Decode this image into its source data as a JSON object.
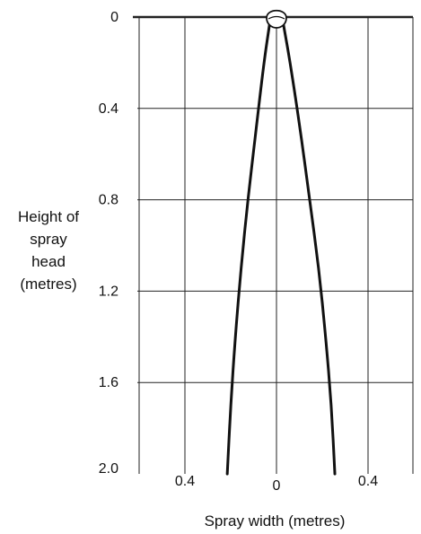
{
  "chart_data": {
    "type": "line",
    "title": "",
    "ylabel": [
      "Height of",
      "spray",
      "head",
      "(metres)"
    ],
    "xlabel": "Spray width (metres)",
    "y_ticks": [
      {
        "value": 0,
        "label": "0"
      },
      {
        "value": 0.4,
        "label": "0.4"
      },
      {
        "value": 0.8,
        "label": "0.8"
      },
      {
        "value": 1.2,
        "label": "1.2"
      },
      {
        "value": 1.6,
        "label": "1.6"
      },
      {
        "value": 2.0,
        "label": "2.0"
      }
    ],
    "x_ticks": [
      {
        "value": -0.4,
        "label": "0.4"
      },
      {
        "value": 0,
        "label": "0"
      },
      {
        "value": 0.4,
        "label": "0.4"
      }
    ],
    "xlim": [
      -0.6,
      0.6
    ],
    "ylim": [
      0,
      2.0
    ],
    "y_inverted": true,
    "grid": true,
    "series": [
      {
        "values": [
          {
            "x": -0.03,
            "y": 0.03
          },
          {
            "x": -0.055,
            "y": 0.2
          },
          {
            "x": -0.09,
            "y": 0.5
          },
          {
            "x": -0.125,
            "y": 0.8
          },
          {
            "x": -0.155,
            "y": 1.1
          },
          {
            "x": -0.18,
            "y": 1.4
          },
          {
            "x": -0.2,
            "y": 1.7
          },
          {
            "x": -0.215,
            "y": 2.0
          }
        ]
      },
      {
        "values": [
          {
            "x": 0.03,
            "y": 0.03
          },
          {
            "x": 0.06,
            "y": 0.2
          },
          {
            "x": 0.105,
            "y": 0.5
          },
          {
            "x": 0.145,
            "y": 0.8
          },
          {
            "x": 0.185,
            "y": 1.1
          },
          {
            "x": 0.215,
            "y": 1.4
          },
          {
            "x": 0.24,
            "y": 1.7
          },
          {
            "x": 0.255,
            "y": 2.0
          }
        ]
      }
    ]
  }
}
